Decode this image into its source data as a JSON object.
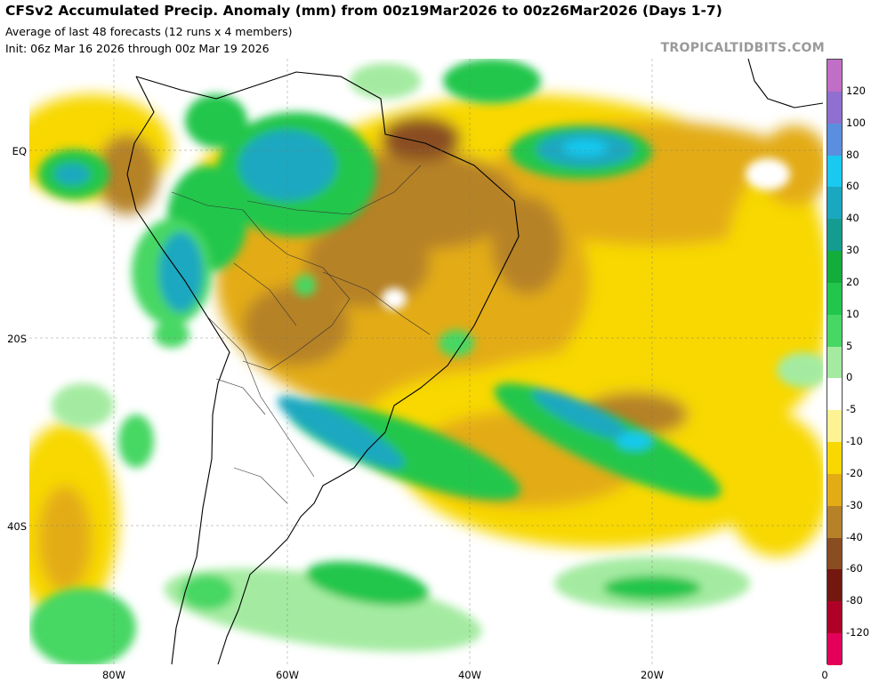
{
  "header": {
    "title": "CFSv2 Accumulated Precip. Anomaly (mm) from 00z19Mar2026 to 00z26Mar2026 (Days 1-7)",
    "subtitle": "Average of last 48 forecasts (12 runs x 4 members)",
    "init": "Init: 06z Mar 16 2026 through 00z Mar 19 2026",
    "brand": "TROPICALTIDBITS.COM"
  },
  "axes": {
    "lat_labels": [
      "EQ",
      "20S",
      "40S"
    ],
    "lon_labels": [
      "80W",
      "60W",
      "40W",
      "20W",
      "0"
    ]
  },
  "colorbar": {
    "labels": [
      "120",
      "100",
      "80",
      "60",
      "40",
      "30",
      "20",
      "10",
      "5",
      "0",
      "-5",
      "-10",
      "-20",
      "-30",
      "-40",
      "-60",
      "-80",
      "-120"
    ],
    "colors": [
      "#c16ec6",
      "#8f6fd0",
      "#5a8fe0",
      "#19c9f0",
      "#1aa8c0",
      "#149c90",
      "#12ad3b",
      "#22c64c",
      "#46d764",
      "#a4eba1",
      "#ffffff",
      "#fdf394",
      "#f8d800",
      "#e3ac14",
      "#b68228",
      "#8a4d22",
      "#74170f",
      "#b00027",
      "#e4005a"
    ]
  }
}
